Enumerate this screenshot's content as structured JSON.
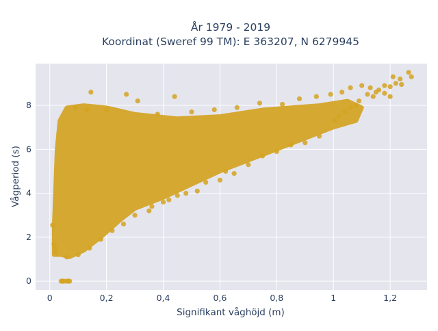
{
  "chart_data": {
    "type": "scatter",
    "title_lines": [
      "År 1979 - 2019",
      "Koordinat (Sweref 99 TM): E 363207, N 6279945"
    ],
    "xlabel": "Signifikant våghöjd (m)",
    "ylabel": "Vågperiod (s)",
    "xlim": [
      -0.05,
      1.33
    ],
    "ylim": [
      -0.4,
      9.9
    ],
    "x_ticks": [
      0,
      0.2,
      0.4,
      0.6,
      0.8,
      1.0,
      1.2
    ],
    "x_tick_labels": [
      "0",
      "0,2",
      "0,4",
      "0,6",
      "0,8",
      "1",
      "1,2"
    ],
    "y_ticks": [
      0,
      2,
      4,
      6,
      8
    ],
    "y_tick_labels": [
      "0",
      "2",
      "4",
      "6",
      "8"
    ],
    "grid": true,
    "marker_color": "#D4A321",
    "plot_background": "#E5E5EE",
    "dense_region": {
      "outline": [
        [
          0.015,
          1.2
        ],
        [
          0.04,
          1.2
        ],
        [
          0.07,
          1.1
        ],
        [
          0.12,
          1.4
        ],
        [
          0.18,
          2.0
        ],
        [
          0.25,
          2.8
        ],
        [
          0.3,
          3.3
        ],
        [
          0.4,
          3.8
        ],
        [
          0.5,
          4.4
        ],
        [
          0.6,
          5.0
        ],
        [
          0.7,
          5.5
        ],
        [
          0.8,
          6.0
        ],
        [
          0.9,
          6.5
        ],
        [
          1.0,
          7.0
        ],
        [
          1.08,
          7.3
        ],
        [
          1.1,
          7.9
        ],
        [
          1.05,
          8.2
        ],
        [
          0.95,
          8.0
        ],
        [
          0.85,
          7.9
        ],
        [
          0.75,
          7.8
        ],
        [
          0.6,
          7.5
        ],
        [
          0.45,
          7.4
        ],
        [
          0.3,
          7.6
        ],
        [
          0.2,
          7.9
        ],
        [
          0.12,
          8.0
        ],
        [
          0.06,
          7.9
        ],
        [
          0.035,
          7.3
        ],
        [
          0.025,
          6.0
        ],
        [
          0.015,
          2.5
        ]
      ]
    },
    "points": [
      [
        0.04,
        0.0
      ],
      [
        0.05,
        0.0
      ],
      [
        0.06,
        0.0
      ],
      [
        0.07,
        0.0
      ],
      [
        0.045,
        0.0
      ],
      [
        0.065,
        0.0
      ],
      [
        0.02,
        1.3
      ],
      [
        0.02,
        1.5
      ],
      [
        0.015,
        1.7
      ],
      [
        0.01,
        2.55
      ],
      [
        0.06,
        1.1
      ],
      [
        0.145,
        8.6
      ],
      [
        0.27,
        8.5
      ],
      [
        0.44,
        8.4
      ],
      [
        0.31,
        8.2
      ],
      [
        0.13,
        7.8
      ],
      [
        0.09,
        7.9
      ],
      [
        0.2,
        7.8
      ],
      [
        0.38,
        7.6
      ],
      [
        0.5,
        7.7
      ],
      [
        0.58,
        7.8
      ],
      [
        0.66,
        7.9
      ],
      [
        0.74,
        8.1
      ],
      [
        0.82,
        8.05
      ],
      [
        0.88,
        8.3
      ],
      [
        0.94,
        8.4
      ],
      [
        0.99,
        8.5
      ],
      [
        1.03,
        8.6
      ],
      [
        1.06,
        8.8
      ],
      [
        1.1,
        8.9
      ],
      [
        1.13,
        8.8
      ],
      [
        1.16,
        8.7
      ],
      [
        1.18,
        8.9
      ],
      [
        1.2,
        8.85
      ],
      [
        1.22,
        9.0
      ],
      [
        1.24,
        8.95
      ],
      [
        1.235,
        9.2
      ],
      [
        1.21,
        9.3
      ],
      [
        1.265,
        9.5
      ],
      [
        1.275,
        9.3
      ],
      [
        1.15,
        8.6
      ],
      [
        1.12,
        8.5
      ],
      [
        1.14,
        8.4
      ],
      [
        1.18,
        8.55
      ],
      [
        1.2,
        8.4
      ],
      [
        1.005,
        7.3
      ],
      [
        1.02,
        7.5
      ],
      [
        1.04,
        7.7
      ],
      [
        1.06,
        7.9
      ],
      [
        1.08,
        8.0
      ],
      [
        1.09,
        8.2
      ],
      [
        0.55,
        4.5
      ],
      [
        0.62,
        5.0
      ],
      [
        0.65,
        4.9
      ],
      [
        0.7,
        5.3
      ],
      [
        0.75,
        5.7
      ],
      [
        0.8,
        5.9
      ],
      [
        0.85,
        6.2
      ],
      [
        0.9,
        6.3
      ],
      [
        0.95,
        6.6
      ],
      [
        0.45,
        3.9
      ],
      [
        0.4,
        3.6
      ],
      [
        0.35,
        3.2
      ],
      [
        0.3,
        3.0
      ],
      [
        0.26,
        2.6
      ],
      [
        0.22,
        2.3
      ],
      [
        0.18,
        1.9
      ],
      [
        0.14,
        1.5
      ],
      [
        0.1,
        1.2
      ],
      [
        0.52,
        4.1
      ],
      [
        0.48,
        4.0
      ],
      [
        0.36,
        3.4
      ],
      [
        0.42,
        3.7
      ],
      [
        0.6,
        4.6
      ]
    ]
  }
}
